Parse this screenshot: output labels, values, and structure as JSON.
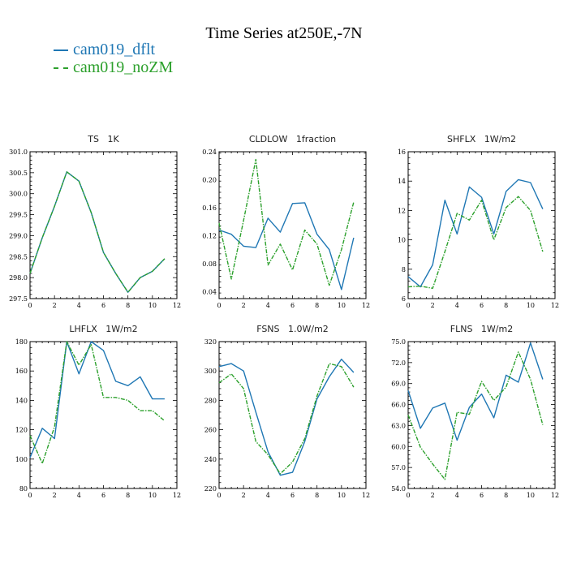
{
  "title": "Time Series at250E,-7N",
  "legend": [
    {
      "label": "cam019_dflt",
      "color": "#1f77b4",
      "dash": false
    },
    {
      "label": "cam019_noZM",
      "color": "#2ca02c",
      "dash": true
    }
  ],
  "chart_data": [
    {
      "type": "line",
      "title": "TS   1K",
      "x": [
        0,
        1,
        2,
        3,
        4,
        5,
        6,
        7,
        8,
        9,
        10,
        11
      ],
      "xlim": [
        0,
        12
      ],
      "xticks": [
        0,
        2,
        4,
        6,
        8,
        10,
        12
      ],
      "ylim": [
        297.5,
        301.0
      ],
      "yticks": [
        "297.5",
        "298.0",
        "298.5",
        "299.0",
        "299.5",
        "300.0",
        "300.5",
        "301.0"
      ],
      "series": [
        {
          "name": "cam019_dflt",
          "values": [
            298.1,
            298.95,
            299.7,
            300.52,
            300.3,
            299.55,
            298.6,
            298.1,
            297.65,
            298.0,
            298.15,
            298.45
          ]
        },
        {
          "name": "cam019_noZM",
          "values": [
            298.1,
            298.95,
            299.7,
            300.52,
            300.3,
            299.55,
            298.6,
            298.1,
            297.65,
            298.0,
            298.15,
            298.45
          ]
        }
      ]
    },
    {
      "type": "line",
      "title": "CLDLOW   1fraction",
      "x": [
        0,
        1,
        2,
        3,
        4,
        5,
        6,
        7,
        8,
        9,
        10,
        11
      ],
      "xlim": [
        0,
        12
      ],
      "xticks": [
        0,
        2,
        4,
        6,
        8,
        10,
        12
      ],
      "ylim": [
        0.03,
        0.24
      ],
      "yticks": [
        "0.04",
        "0.08",
        "0.12",
        "0.16",
        "0.20",
        "0.24"
      ],
      "series": [
        {
          "name": "cam019_dflt",
          "values": [
            0.128,
            0.122,
            0.105,
            0.103,
            0.145,
            0.125,
            0.166,
            0.167,
            0.122,
            0.1,
            0.043,
            0.117
          ]
        },
        {
          "name": "cam019_noZM",
          "values": [
            0.138,
            0.058,
            0.142,
            0.229,
            0.078,
            0.108,
            0.071,
            0.128,
            0.108,
            0.049,
            0.1,
            0.168
          ]
        }
      ]
    },
    {
      "type": "line",
      "title": "SHFLX   1W/m2",
      "x": [
        0,
        1,
        2,
        3,
        4,
        5,
        6,
        7,
        8,
        9,
        10,
        11
      ],
      "xlim": [
        0,
        12
      ],
      "xticks": [
        0,
        2,
        4,
        6,
        8,
        10,
        12
      ],
      "ylim": [
        6,
        16
      ],
      "yticks": [
        "6",
        "8",
        "10",
        "12",
        "14",
        "16"
      ],
      "series": [
        {
          "name": "cam019_dflt",
          "values": [
            7.5,
            6.8,
            8.3,
            12.7,
            10.4,
            13.6,
            12.9,
            10.4,
            13.3,
            14.1,
            13.9,
            12.1
          ]
        },
        {
          "name": "cam019_noZM",
          "values": [
            6.8,
            6.85,
            6.7,
            9.2,
            11.8,
            11.35,
            12.7,
            10.0,
            12.2,
            12.95,
            12.0,
            9.2
          ]
        }
      ]
    },
    {
      "type": "line",
      "title": "LHFLX   1W/m2",
      "x": [
        0,
        1,
        2,
        3,
        4,
        5,
        6,
        7,
        8,
        9,
        10,
        11
      ],
      "xlim": [
        0,
        12
      ],
      "xticks": [
        0,
        2,
        4,
        6,
        8,
        10,
        12
      ],
      "ylim": [
        80,
        180
      ],
      "yticks": [
        "80",
        "100",
        "120",
        "140",
        "160",
        "180"
      ],
      "series": [
        {
          "name": "cam019_dflt",
          "values": [
            101,
            121,
            114,
            180,
            158,
            180,
            174,
            153,
            150,
            156,
            141,
            141
          ]
        },
        {
          "name": "cam019_noZM",
          "values": [
            116,
            97,
            122,
            180,
            164,
            178,
            142,
            142,
            140,
            133,
            133,
            126
          ]
        }
      ]
    },
    {
      "type": "line",
      "title": "FSNS   1.0W/m2",
      "x": [
        0,
        1,
        2,
        3,
        4,
        5,
        6,
        7,
        8,
        9,
        10,
        11
      ],
      "xlim": [
        0,
        12
      ],
      "xticks": [
        0,
        2,
        4,
        6,
        8,
        10,
        12
      ],
      "ylim": [
        220,
        320
      ],
      "yticks": [
        "220",
        "240",
        "260",
        "280",
        "300",
        "320"
      ],
      "series": [
        {
          "name": "cam019_dflt",
          "values": [
            303,
            305,
            300,
            272,
            245,
            229,
            231,
            252,
            281,
            296,
            308,
            299
          ]
        },
        {
          "name": "cam019_noZM",
          "values": [
            292,
            298,
            288,
            252,
            243,
            230,
            238,
            254,
            283,
            305,
            303,
            289
          ]
        }
      ]
    },
    {
      "type": "line",
      "title": "FLNS   1W/m2",
      "x": [
        0,
        1,
        2,
        3,
        4,
        5,
        6,
        7,
        8,
        9,
        10,
        11
      ],
      "xlim": [
        0,
        12
      ],
      "xticks": [
        0,
        2,
        4,
        6,
        8,
        10,
        12
      ],
      "ylim": [
        54,
        75
      ],
      "yticks": [
        "54.0",
        "57.0",
        "60.0",
        "63.0",
        "66.0",
        "69.0",
        "72.0",
        "75.0"
      ],
      "series": [
        {
          "name": "cam019_dflt",
          "values": [
            68.0,
            62.6,
            65.5,
            66.2,
            60.9,
            65.6,
            67.5,
            64.1,
            70.2,
            69.2,
            74.8,
            69.6
          ]
        },
        {
          "name": "cam019_noZM",
          "values": [
            64.5,
            59.9,
            57.5,
            55.3,
            64.9,
            64.6,
            69.3,
            66.6,
            68.5,
            73.5,
            69.6,
            63.1
          ]
        }
      ]
    }
  ]
}
